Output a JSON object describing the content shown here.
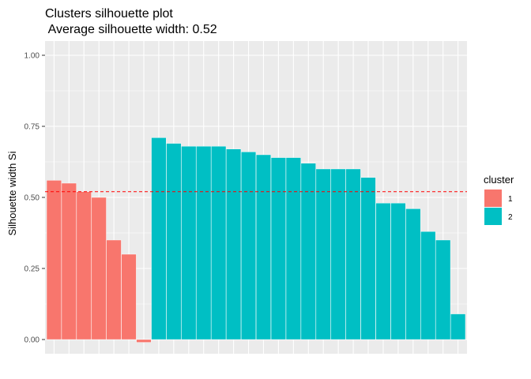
{
  "chart_data": {
    "type": "bar",
    "title": "Clusters silhouette plot",
    "subtitle": " Average silhouette width: 0.52",
    "xlabel": "",
    "ylabel": "Silhouette width Si",
    "ylim": [
      0,
      1
    ],
    "yticks": [
      "0.00",
      "0.25",
      "0.50",
      "0.75",
      "1.00"
    ],
    "average_line": 0.52,
    "grid": true,
    "legend_position": "right",
    "legend": {
      "title": "cluster",
      "entries": [
        {
          "label": "1",
          "color": "#F8766D"
        },
        {
          "label": "2",
          "color": "#00BFC4"
        }
      ]
    },
    "series": [
      {
        "name": "1",
        "color": "#F8766D",
        "values": [
          0.56,
          0.55,
          0.52,
          0.5,
          0.35,
          0.3,
          -0.01
        ]
      },
      {
        "name": "2",
        "color": "#00BFC4",
        "values": [
          0.71,
          0.69,
          0.68,
          0.68,
          0.68,
          0.67,
          0.66,
          0.65,
          0.64,
          0.64,
          0.62,
          0.6,
          0.6,
          0.6,
          0.57,
          0.48,
          0.48,
          0.46,
          0.38,
          0.35,
          0.09
        ]
      }
    ],
    "colors": {
      "panel": "#EBEBEB",
      "grid": "#FFFFFF",
      "avg_line": "#FF0000"
    }
  }
}
